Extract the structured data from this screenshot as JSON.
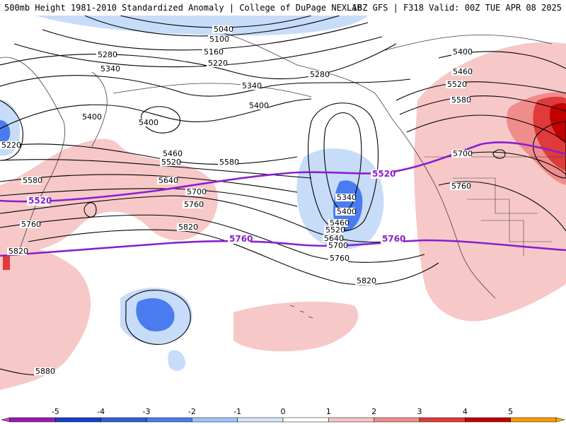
{
  "header": {
    "title_left": "500mb Height 1981-2010 Standardized Anomaly | College of DuPage NEXLAB",
    "title_right": "18Z GFS | F318 Valid: 00Z TUE APR 08 2025"
  },
  "map_labels": [
    {
      "text": "5040"
    },
    {
      "text": "5100"
    },
    {
      "text": "5160"
    },
    {
      "text": "5220"
    },
    {
      "text": "5280"
    },
    {
      "text": "5340"
    },
    {
      "text": "5280"
    },
    {
      "text": "5340"
    },
    {
      "text": "5400"
    },
    {
      "text": "5400"
    },
    {
      "text": "5460"
    },
    {
      "text": "5520"
    },
    {
      "text": "5580"
    },
    {
      "text": "5640"
    },
    {
      "text": "5700"
    },
    {
      "text": "5760"
    },
    {
      "text": "5820"
    },
    {
      "text": "5580"
    },
    {
      "text": "5760"
    },
    {
      "text": "5820"
    },
    {
      "text": "5880"
    },
    {
      "text": "5220"
    },
    {
      "text": "5340"
    },
    {
      "text": "5400"
    },
    {
      "text": "5460"
    },
    {
      "text": "5520"
    },
    {
      "text": "5640"
    },
    {
      "text": "5700"
    },
    {
      "text": "5760"
    },
    {
      "text": "5820"
    },
    {
      "text": "5400"
    },
    {
      "text": "5460"
    },
    {
      "text": "5520"
    },
    {
      "text": "5580"
    },
    {
      "text": "5700"
    },
    {
      "text": "5760"
    },
    {
      "text": "5400"
    }
  ],
  "highlight_labels": [
    {
      "text": "5520"
    },
    {
      "text": "5520"
    },
    {
      "text": "5760"
    },
    {
      "text": "5760"
    }
  ],
  "colorbar": {
    "ticks": [
      "-5",
      "-4",
      "-3",
      "-2",
      "-1",
      "0",
      "1",
      "2",
      "3",
      "4",
      "5"
    ],
    "colors": [
      "#9a1ab0",
      "#1a3cc8",
      "#2f5ed8",
      "#4a7cf0",
      "#9ec4f8",
      "#d4e6fc",
      "#ffffff",
      "#f7c4c4",
      "#f08c8c",
      "#e03a3a",
      "#c20000",
      "#ff9c00"
    ],
    "end_left_color": "#d040d0",
    "end_right_color": "#ffb800"
  },
  "colors": {
    "neg_light": "#c7dcf8",
    "neg_mid": "#9ec4f8",
    "neg_strong": "#4a7cf0",
    "pos_light": "#f7c8c8",
    "pos_mid": "#f08c8c",
    "pos_strong": "#e03a3a",
    "pos_max": "#c20000",
    "highlight_contour": "#8a1fd0",
    "contour": "#000000",
    "coast": "#404040"
  }
}
